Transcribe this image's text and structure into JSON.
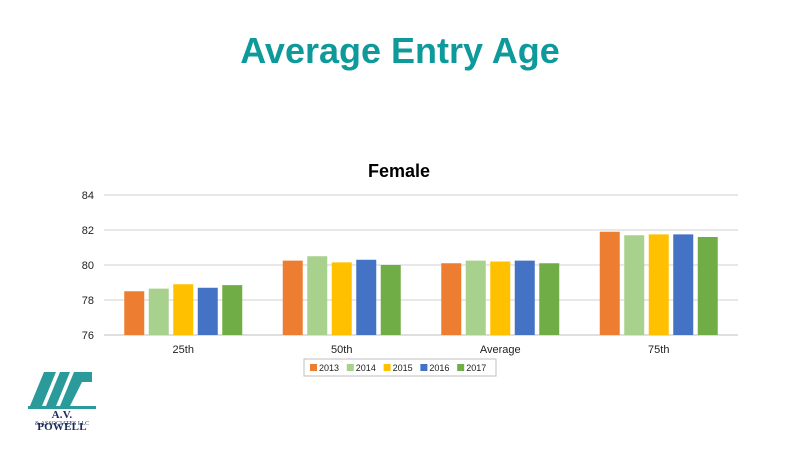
{
  "slide": {
    "title": "Average Entry Age",
    "title_color": "#0e9a9a"
  },
  "logo": {
    "line1": "A.V. POWELL",
    "line2": "& ASSOCIATES LLC",
    "icon": "avp-monogram-logo",
    "color": "#2a9a9a"
  },
  "chart_data": {
    "type": "bar",
    "title": "Female",
    "xlabel": "",
    "ylabel": "",
    "categories": [
      "25th",
      "50th",
      "Average",
      "75th"
    ],
    "ylim": [
      76,
      84
    ],
    "yticks": [
      76,
      78,
      80,
      82,
      84
    ],
    "grid": true,
    "legend_position": "bottom",
    "series": [
      {
        "name": "2013",
        "color": "#ed7d31",
        "values": [
          78.5,
          80.25,
          80.1,
          81.9
        ]
      },
      {
        "name": "2014",
        "color": "#a9d18e",
        "values": [
          78.65,
          80.5,
          80.25,
          81.7
        ]
      },
      {
        "name": "2015",
        "color": "#ffc000",
        "values": [
          78.9,
          80.15,
          80.2,
          81.75
        ]
      },
      {
        "name": "2016",
        "color": "#4472c4",
        "values": [
          78.7,
          80.3,
          80.25,
          81.75
        ]
      },
      {
        "name": "2017",
        "color": "#70ad47",
        "values": [
          78.85,
          80.0,
          80.1,
          81.6
        ]
      }
    ]
  }
}
